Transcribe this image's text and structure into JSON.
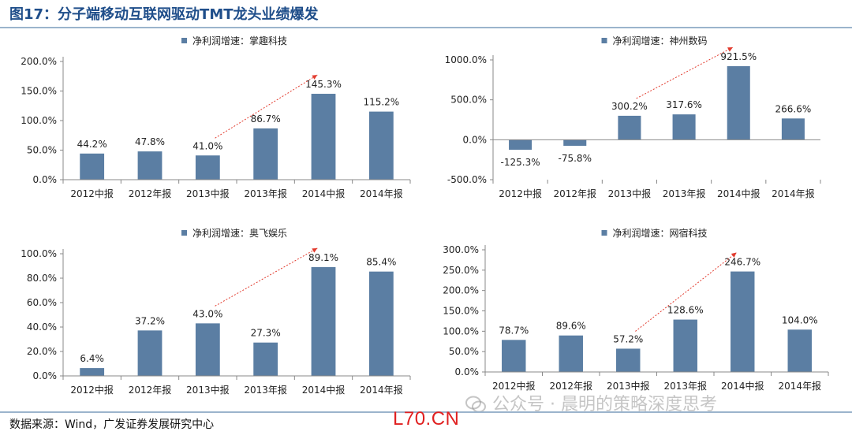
{
  "figure_title": "图17：分子端移动互联网驱动TMT龙头业绩爆发",
  "source": "数据来源：Wind，广发证券发展研究中心",
  "logo_text": "L70.CN",
  "watermark": "公众号 · 晨明的策略深度思考",
  "colors": {
    "bar": "#5b7ea3",
    "trend": "#e23b2e",
    "title": "#1f4e8a",
    "rule": "#9bb4cc"
  },
  "chart_data": [
    {
      "type": "bar",
      "legend": "净利润增速：掌趣科技",
      "categories": [
        "2012中报",
        "2012年报",
        "2013中报",
        "2013年报",
        "2014中报",
        "2014年报"
      ],
      "values": [
        44.2,
        47.8,
        41.0,
        86.7,
        145.3,
        115.2
      ],
      "value_labels": [
        "44.2%",
        "47.8%",
        "41.0%",
        "86.7%",
        "145.3%",
        "115.2%"
      ],
      "ylim": [
        0,
        200
      ],
      "yticks": [
        0,
        50,
        100,
        150,
        200
      ],
      "ytick_labels": [
        "0.0%",
        "50.0%",
        "100.0%",
        "150.0%",
        "200.0%"
      ],
      "trend_arrow": {
        "from_category": 2,
        "to_category": 4
      }
    },
    {
      "type": "bar",
      "legend": "净利润增速：神州数码",
      "categories": [
        "2012中报",
        "2012年报",
        "2013中报",
        "2013年报",
        "2014中报",
        "2014年报"
      ],
      "values": [
        -125.3,
        -75.8,
        300.2,
        317.6,
        921.5,
        266.6
      ],
      "value_labels": [
        "-125.3%",
        "-75.8%",
        "300.2%",
        "317.6%",
        "921.5%",
        "266.6%"
      ],
      "ylim": [
        -500,
        1000
      ],
      "yticks": [
        -500,
        0,
        500,
        1000
      ],
      "ytick_labels": [
        "-500.0%",
        "0.0%",
        "500.0%",
        "1000.0%"
      ],
      "trend_arrow": {
        "from_category": 2,
        "to_category": 4
      }
    },
    {
      "type": "bar",
      "legend": "净利润增速：奥飞娱乐",
      "categories": [
        "2012中报",
        "2012年报",
        "2013中报",
        "2013年报",
        "2014中报",
        "2014年报"
      ],
      "values": [
        6.4,
        37.2,
        43.0,
        27.3,
        89.1,
        85.4
      ],
      "value_labels": [
        "6.4%",
        "37.2%",
        "43.0%",
        "27.3%",
        "89.1%",
        "85.4%"
      ],
      "ylim": [
        0,
        100
      ],
      "yticks": [
        0,
        20,
        40,
        60,
        80,
        100
      ],
      "ytick_labels": [
        "0.0%",
        "20.0%",
        "40.0%",
        "60.0%",
        "80.0%",
        "100.0%"
      ],
      "trend_arrow": {
        "from_category": 2,
        "to_category": 4
      }
    },
    {
      "type": "bar",
      "legend": "净利润增速：网宿科技",
      "categories": [
        "2012中报",
        "2012年报",
        "2013中报",
        "2013年报",
        "2014中报",
        "2014年报"
      ],
      "values": [
        78.7,
        89.6,
        57.2,
        128.6,
        246.7,
        104.0
      ],
      "value_labels": [
        "78.7%",
        "89.6%",
        "57.2%",
        "128.6%",
        "246.7%",
        "104.0%"
      ],
      "ylim": [
        0,
        300
      ],
      "yticks": [
        0,
        50,
        100,
        150,
        200,
        250,
        300
      ],
      "ytick_labels": [
        "0.0%",
        "50.0%",
        "100.0%",
        "150.0%",
        "200.0%",
        "250.0%",
        "300.0%"
      ],
      "trend_arrow": {
        "from_category": 2,
        "to_category": 4
      }
    }
  ]
}
